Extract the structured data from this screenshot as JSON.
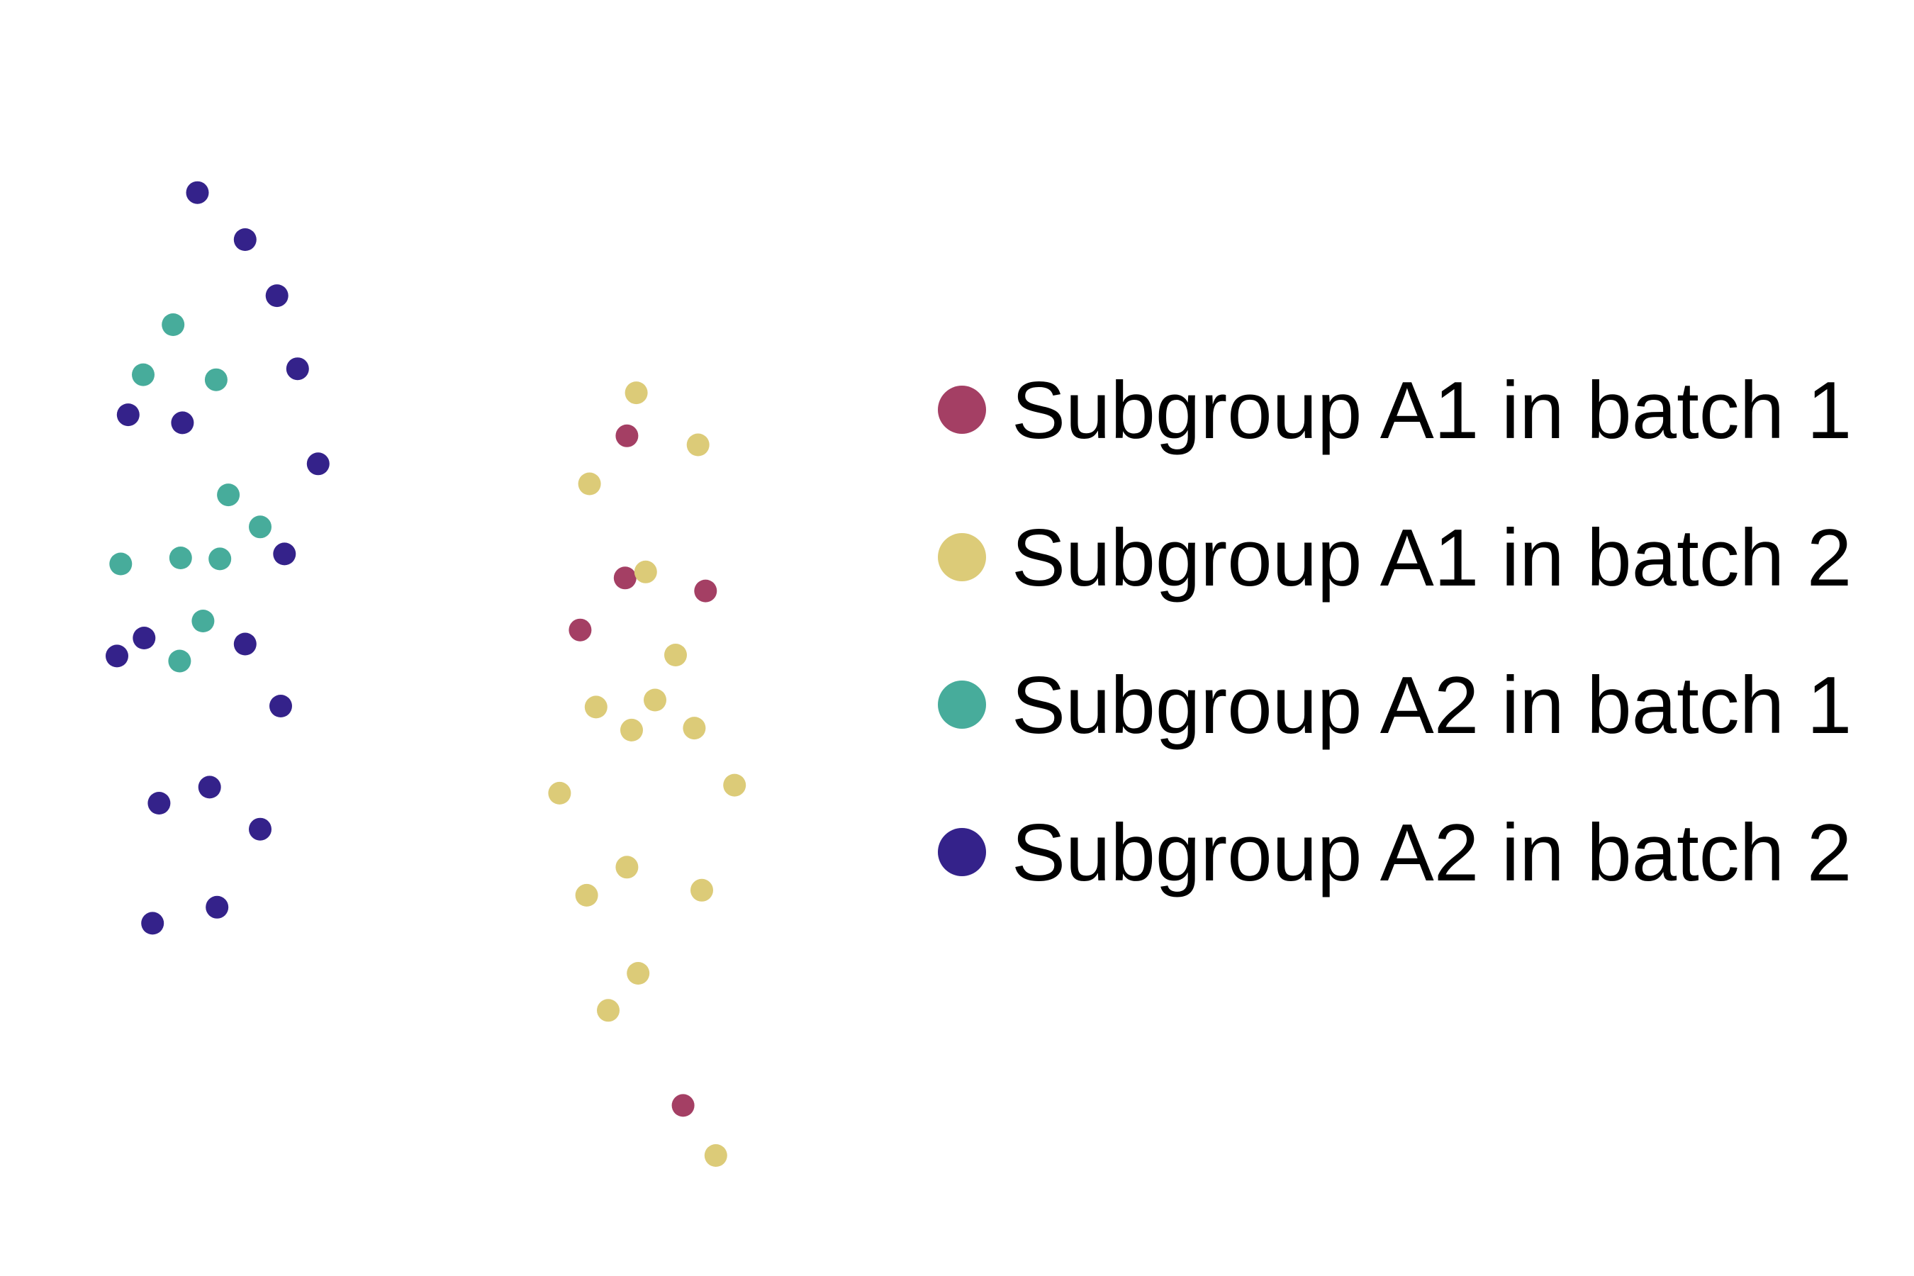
{
  "chart_data": {
    "type": "scatter",
    "title": "",
    "xlabel": "",
    "ylabel": "",
    "axes_visible": false,
    "grid": false,
    "legend_position": "right",
    "xlim": [
      0,
      100
    ],
    "ylim": [
      0,
      100
    ],
    "series": [
      {
        "name": "Subgroup A1 in batch 1",
        "color": "#A43F64",
        "points": [
          {
            "x": 67.0,
            "y": 71.9
          },
          {
            "x": 66.8,
            "y": 57.7
          },
          {
            "x": 75.4,
            "y": 56.4
          },
          {
            "x": 62.0,
            "y": 52.5
          },
          {
            "x": 73.0,
            "y": 5.0
          }
        ]
      },
      {
        "name": "Subgroup A1 in batch 2",
        "color": "#DCCB78",
        "points": [
          {
            "x": 68.0,
            "y": 76.2
          },
          {
            "x": 74.6,
            "y": 71.0
          },
          {
            "x": 63.0,
            "y": 67.1
          },
          {
            "x": 69.0,
            "y": 58.3
          },
          {
            "x": 72.2,
            "y": 50.0
          },
          {
            "x": 63.7,
            "y": 44.8
          },
          {
            "x": 70.0,
            "y": 45.5
          },
          {
            "x": 67.5,
            "y": 42.5
          },
          {
            "x": 74.2,
            "y": 42.7
          },
          {
            "x": 59.8,
            "y": 36.2
          },
          {
            "x": 78.5,
            "y": 37.0
          },
          {
            "x": 67.0,
            "y": 28.8
          },
          {
            "x": 62.7,
            "y": 26.0
          },
          {
            "x": 75.0,
            "y": 26.5
          },
          {
            "x": 68.2,
            "y": 18.2
          },
          {
            "x": 65.0,
            "y": 14.5
          },
          {
            "x": 76.5,
            "y": 0.0
          }
        ]
      },
      {
        "name": "Subgroup A2 in batch 1",
        "color": "#47AC9B",
        "points": [
          {
            "x": 18.5,
            "y": 83.0
          },
          {
            "x": 15.3,
            "y": 78.0
          },
          {
            "x": 23.1,
            "y": 77.5
          },
          {
            "x": 24.4,
            "y": 66.0
          },
          {
            "x": 27.8,
            "y": 62.8
          },
          {
            "x": 12.9,
            "y": 59.1
          },
          {
            "x": 19.3,
            "y": 59.7
          },
          {
            "x": 23.5,
            "y": 59.6
          },
          {
            "x": 21.7,
            "y": 53.4
          },
          {
            "x": 19.2,
            "y": 49.4
          }
        ]
      },
      {
        "name": "Subgroup A2 in batch 2",
        "color": "#34228A",
        "points": [
          {
            "x": 21.1,
            "y": 96.2
          },
          {
            "x": 26.2,
            "y": 91.5
          },
          {
            "x": 29.6,
            "y": 85.9
          },
          {
            "x": 31.8,
            "y": 78.6
          },
          {
            "x": 13.7,
            "y": 74.0
          },
          {
            "x": 19.5,
            "y": 73.2
          },
          {
            "x": 34.0,
            "y": 69.1
          },
          {
            "x": 30.4,
            "y": 60.1
          },
          {
            "x": 15.4,
            "y": 51.7
          },
          {
            "x": 12.5,
            "y": 49.9
          },
          {
            "x": 26.2,
            "y": 51.1
          },
          {
            "x": 30.0,
            "y": 44.9
          },
          {
            "x": 22.4,
            "y": 36.8
          },
          {
            "x": 17.0,
            "y": 35.2
          },
          {
            "x": 27.8,
            "y": 32.6
          },
          {
            "x": 23.2,
            "y": 24.8
          },
          {
            "x": 16.3,
            "y": 23.2
          }
        ]
      }
    ]
  }
}
